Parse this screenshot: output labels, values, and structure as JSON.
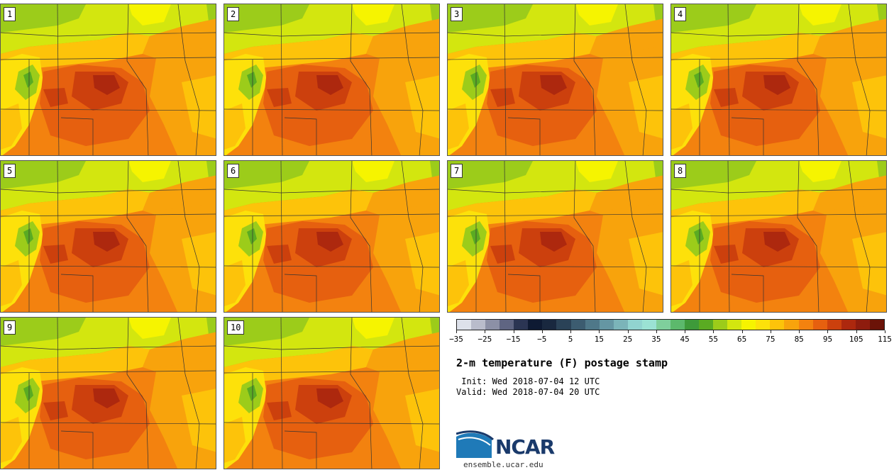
{
  "panels": [
    {
      "id": "1",
      "label": "1"
    },
    {
      "id": "2",
      "label": "2"
    },
    {
      "id": "3",
      "label": "3"
    },
    {
      "id": "4",
      "label": "4"
    },
    {
      "id": "5",
      "label": "5"
    },
    {
      "id": "6",
      "label": "6"
    },
    {
      "id": "7",
      "label": "7"
    },
    {
      "id": "8",
      "label": "8"
    },
    {
      "id": "9",
      "label": "9"
    },
    {
      "id": "10",
      "label": "10"
    }
  ],
  "colorbar": {
    "min": -35,
    "max": 120,
    "step": 5,
    "tick_labels": [
      "−35",
      "−25",
      "−15",
      "−5",
      "5",
      "15",
      "25",
      "35",
      "45",
      "55",
      "65",
      "75",
      "85",
      "95",
      "105",
      "115"
    ],
    "tick_values": [
      -35,
      -25,
      -15,
      -5,
      5,
      15,
      25,
      35,
      45,
      55,
      65,
      75,
      85,
      95,
      105,
      115
    ],
    "colors": [
      "#dde1ea",
      "#b9bccb",
      "#8c90a6",
      "#5f6582",
      "#2b3553",
      "#0e1a33",
      "#19283f",
      "#2a4257",
      "#3c5c70",
      "#4f7889",
      "#6596a3",
      "#7bb4b9",
      "#91d4d0",
      "#9be2d4",
      "#7fcf9c",
      "#5cb96c",
      "#3e9a3a",
      "#5aab22",
      "#9ccc1a",
      "#d3e60f",
      "#f6f400",
      "#fde10a",
      "#fdc30a",
      "#f8a30c",
      "#f3820f",
      "#e6600f",
      "#cc400d",
      "#ad280e",
      "#8e1c0e",
      "#6b1308"
    ]
  },
  "title": "2-m temperature (F) postage stamp",
  "init": " Init: Wed 2018-07-04 12 UTC",
  "valid": "Valid: Wed 2018-07-04 20 UTC",
  "logo": {
    "name": "NCAR",
    "url": "ensemble.ucar.edu"
  }
}
